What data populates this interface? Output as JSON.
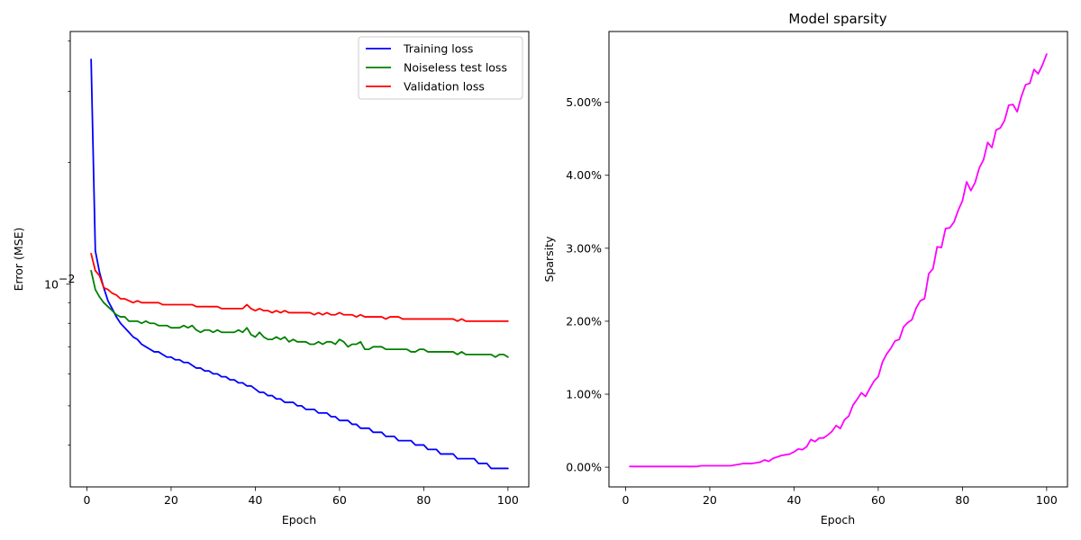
{
  "chart_data": [
    {
      "type": "line",
      "title": "",
      "xlabel": "Epoch",
      "ylabel": "Error (MSE)",
      "yscale": "log",
      "xlim": [
        -3.95,
        104.95
      ],
      "ylim": [
        0.00315,
        0.0422
      ],
      "xticks": [
        0,
        20,
        40,
        60,
        80,
        100
      ],
      "yticks": [
        {
          "value": 0.01,
          "label": "10"
        }
      ],
      "legend": "top-right",
      "grid": false,
      "series": [
        {
          "name": "Training loss",
          "color": "#0000ff",
          "x": [
            1,
            2,
            3,
            4,
            5,
            6,
            7,
            8,
            9,
            10,
            11,
            12,
            13,
            14,
            15,
            16,
            17,
            18,
            19,
            20,
            21,
            22,
            23,
            24,
            25,
            26,
            27,
            28,
            29,
            30,
            31,
            32,
            33,
            34,
            35,
            36,
            37,
            38,
            39,
            40,
            41,
            42,
            43,
            44,
            45,
            46,
            47,
            48,
            49,
            50,
            51,
            52,
            53,
            54,
            55,
            56,
            57,
            58,
            59,
            60,
            61,
            62,
            63,
            64,
            65,
            66,
            67,
            68,
            69,
            70,
            71,
            72,
            73,
            74,
            75,
            76,
            77,
            78,
            79,
            80,
            81,
            82,
            83,
            84,
            85,
            86,
            87,
            88,
            89,
            90,
            91,
            92,
            93,
            94,
            95,
            96,
            97,
            98,
            99,
            100
          ],
          "y": [
            0.036,
            0.0121,
            0.0107,
            0.0098,
            0.0091,
            0.0087,
            0.0083,
            0.008,
            0.0078,
            0.0076,
            0.0074,
            0.0073,
            0.0071,
            0.007,
            0.0069,
            0.0068,
            0.0068,
            0.0067,
            0.0066,
            0.0066,
            0.0065,
            0.0065,
            0.0064,
            0.0064,
            0.0063,
            0.0062,
            0.0062,
            0.0061,
            0.0061,
            0.006,
            0.006,
            0.0059,
            0.0059,
            0.0058,
            0.0058,
            0.0057,
            0.0057,
            0.0056,
            0.0056,
            0.0055,
            0.0054,
            0.0054,
            0.0053,
            0.0053,
            0.0052,
            0.0052,
            0.0051,
            0.0051,
            0.0051,
            0.005,
            0.005,
            0.0049,
            0.0049,
            0.0049,
            0.0048,
            0.0048,
            0.0048,
            0.0047,
            0.0047,
            0.0046,
            0.0046,
            0.0046,
            0.0045,
            0.0045,
            0.0044,
            0.0044,
            0.0044,
            0.0043,
            0.0043,
            0.0043,
            0.0042,
            0.0042,
            0.0042,
            0.0041,
            0.0041,
            0.0041,
            0.0041,
            0.004,
            0.004,
            0.004,
            0.0039,
            0.0039,
            0.0039,
            0.0038,
            0.0038,
            0.0038,
            0.0038,
            0.0037,
            0.0037,
            0.0037,
            0.0037,
            0.0037,
            0.0036,
            0.0036,
            0.0036,
            0.0035,
            0.0035,
            0.0035,
            0.0035,
            0.0035
          ]
        },
        {
          "name": "Noiseless test loss",
          "color": "#008000",
          "x": [
            1,
            2,
            3,
            4,
            5,
            6,
            7,
            8,
            9,
            10,
            11,
            12,
            13,
            14,
            15,
            16,
            17,
            18,
            19,
            20,
            21,
            22,
            23,
            24,
            25,
            26,
            27,
            28,
            29,
            30,
            31,
            32,
            33,
            34,
            35,
            36,
            37,
            38,
            39,
            40,
            41,
            42,
            43,
            44,
            45,
            46,
            47,
            48,
            49,
            50,
            51,
            52,
            53,
            54,
            55,
            56,
            57,
            58,
            59,
            60,
            61,
            62,
            63,
            64,
            65,
            66,
            67,
            68,
            69,
            70,
            71,
            72,
            73,
            74,
            75,
            76,
            77,
            78,
            79,
            80,
            81,
            82,
            83,
            84,
            85,
            86,
            87,
            88,
            89,
            90,
            91,
            92,
            93,
            94,
            95,
            96,
            97,
            98,
            99,
            100
          ],
          "y": [
            0.0108,
            0.0097,
            0.0093,
            0.009,
            0.0088,
            0.0086,
            0.0084,
            0.0083,
            0.0083,
            0.0081,
            0.0081,
            0.0081,
            0.008,
            0.0081,
            0.008,
            0.008,
            0.0079,
            0.0079,
            0.0079,
            0.0078,
            0.0078,
            0.0078,
            0.0079,
            0.0078,
            0.0079,
            0.0077,
            0.0076,
            0.0077,
            0.0077,
            0.0076,
            0.0077,
            0.0076,
            0.0076,
            0.0076,
            0.0076,
            0.0077,
            0.0076,
            0.0078,
            0.0075,
            0.0074,
            0.0076,
            0.0074,
            0.0073,
            0.0073,
            0.0074,
            0.0073,
            0.0074,
            0.0072,
            0.0073,
            0.0072,
            0.0072,
            0.0072,
            0.0071,
            0.0071,
            0.0072,
            0.0071,
            0.0072,
            0.0072,
            0.0071,
            0.0073,
            0.0072,
            0.007,
            0.0071,
            0.0071,
            0.0072,
            0.0069,
            0.0069,
            0.007,
            0.007,
            0.007,
            0.0069,
            0.0069,
            0.0069,
            0.0069,
            0.0069,
            0.0069,
            0.0068,
            0.0068,
            0.0069,
            0.0069,
            0.0068,
            0.0068,
            0.0068,
            0.0068,
            0.0068,
            0.0068,
            0.0068,
            0.0067,
            0.0068,
            0.0067,
            0.0067,
            0.0067,
            0.0067,
            0.0067,
            0.0067,
            0.0067,
            0.0066,
            0.0067,
            0.0067,
            0.0066
          ]
        },
        {
          "name": "Validation loss",
          "color": "#ff0000",
          "x": [
            1,
            2,
            3,
            4,
            5,
            6,
            7,
            8,
            9,
            10,
            11,
            12,
            13,
            14,
            15,
            16,
            17,
            18,
            19,
            20,
            21,
            22,
            23,
            24,
            25,
            26,
            27,
            28,
            29,
            30,
            31,
            32,
            33,
            34,
            35,
            36,
            37,
            38,
            39,
            40,
            41,
            42,
            43,
            44,
            45,
            46,
            47,
            48,
            49,
            50,
            51,
            52,
            53,
            54,
            55,
            56,
            57,
            58,
            59,
            60,
            61,
            62,
            63,
            64,
            65,
            66,
            67,
            68,
            69,
            70,
            71,
            72,
            73,
            74,
            75,
            76,
            77,
            78,
            79,
            80,
            81,
            82,
            83,
            84,
            85,
            86,
            87,
            88,
            89,
            90,
            91,
            92,
            93,
            94,
            95,
            96,
            97,
            98,
            99,
            100
          ],
          "y": [
            0.0119,
            0.0108,
            0.0105,
            0.0098,
            0.0097,
            0.0095,
            0.0094,
            0.0092,
            0.0092,
            0.0091,
            0.009,
            0.0091,
            0.009,
            0.009,
            0.009,
            0.009,
            0.009,
            0.0089,
            0.0089,
            0.0089,
            0.0089,
            0.0089,
            0.0089,
            0.0089,
            0.0089,
            0.0088,
            0.0088,
            0.0088,
            0.0088,
            0.0088,
            0.0088,
            0.0087,
            0.0087,
            0.0087,
            0.0087,
            0.0087,
            0.0087,
            0.0089,
            0.0087,
            0.0086,
            0.0087,
            0.0086,
            0.0086,
            0.0085,
            0.0086,
            0.0085,
            0.0086,
            0.0085,
            0.0085,
            0.0085,
            0.0085,
            0.0085,
            0.0085,
            0.0084,
            0.0085,
            0.0084,
            0.0085,
            0.0084,
            0.0084,
            0.0085,
            0.0084,
            0.0084,
            0.0084,
            0.0083,
            0.0084,
            0.0083,
            0.0083,
            0.0083,
            0.0083,
            0.0083,
            0.0082,
            0.0083,
            0.0083,
            0.0083,
            0.0082,
            0.0082,
            0.0082,
            0.0082,
            0.0082,
            0.0082,
            0.0082,
            0.0082,
            0.0082,
            0.0082,
            0.0082,
            0.0082,
            0.0082,
            0.0081,
            0.0082,
            0.0081,
            0.0081,
            0.0081,
            0.0081,
            0.0081,
            0.0081,
            0.0081,
            0.0081,
            0.0081,
            0.0081,
            0.0081
          ]
        }
      ]
    },
    {
      "type": "line",
      "title": "Model sparsity",
      "xlabel": "Epoch",
      "ylabel": "Sparsity",
      "xlim": [
        -3.95,
        104.95
      ],
      "ylim": [
        -0.0027,
        0.0597
      ],
      "xticks": [
        0,
        20,
        40,
        60,
        80,
        100
      ],
      "yticks": [
        0,
        0.01,
        0.02,
        0.03,
        0.04,
        0.05
      ],
      "ytick_labels": [
        "0.00%",
        "1.00%",
        "2.00%",
        "3.00%",
        "4.00%",
        "5.00%"
      ],
      "grid": false,
      "series": [
        {
          "color": "#ff00ff",
          "x": [
            1,
            2,
            3,
            4,
            5,
            6,
            7,
            8,
            9,
            10,
            11,
            12,
            13,
            14,
            15,
            16,
            17,
            18,
            19,
            20,
            21,
            22,
            23,
            24,
            25,
            26,
            27,
            28,
            29,
            30,
            31,
            32,
            33,
            34,
            35,
            36,
            37,
            38,
            39,
            40,
            41,
            42,
            43,
            44,
            45,
            46,
            47,
            48,
            49,
            50,
            51,
            52,
            53,
            54,
            55,
            56,
            57,
            58,
            59,
            60,
            61,
            62,
            63,
            64,
            65,
            66,
            67,
            68,
            69,
            70,
            71,
            72,
            73,
            74,
            75,
            76,
            77,
            78,
            79,
            80,
            81,
            82,
            83,
            84,
            85,
            86,
            87,
            88,
            89,
            90,
            91,
            92,
            93,
            94,
            95,
            96,
            97,
            98,
            99,
            100
          ],
          "y": [
            0.0001,
            0.0001,
            0.0001,
            0.0001,
            0.0001,
            0.0001,
            0.0001,
            0.0001,
            0.0001,
            0.0001,
            0.0001,
            0.0001,
            0.0001,
            0.0001,
            0.0001,
            0.0001,
            0.0001,
            0.0002,
            0.0002,
            0.0002,
            0.0002,
            0.0002,
            0.0002,
            0.0002,
            0.0002,
            0.0003,
            0.0004,
            0.0005,
            0.0005,
            0.0005,
            0.0006,
            0.0007,
            0.001,
            0.0008,
            0.0012,
            0.0014,
            0.0016,
            0.0017,
            0.0018,
            0.0021,
            0.0025,
            0.0024,
            0.0028,
            0.0038,
            0.0035,
            0.004,
            0.004,
            0.0044,
            0.0049,
            0.0057,
            0.0053,
            0.0065,
            0.007,
            0.0085,
            0.0093,
            0.0102,
            0.0097,
            0.0108,
            0.0118,
            0.0124,
            0.0144,
            0.0155,
            0.0163,
            0.0173,
            0.0175,
            0.0192,
            0.0198,
            0.0202,
            0.0218,
            0.0228,
            0.0231,
            0.0265,
            0.0272,
            0.0302,
            0.0301,
            0.0327,
            0.0328,
            0.0336,
            0.0352,
            0.0365,
            0.0391,
            0.0379,
            0.039,
            0.041,
            0.0421,
            0.0445,
            0.0438,
            0.0462,
            0.0465,
            0.0475,
            0.0496,
            0.0497,
            0.0487,
            0.0508,
            0.0524,
            0.0526,
            0.0545,
            0.0539,
            0.0551,
            0.0566
          ]
        }
      ]
    }
  ]
}
